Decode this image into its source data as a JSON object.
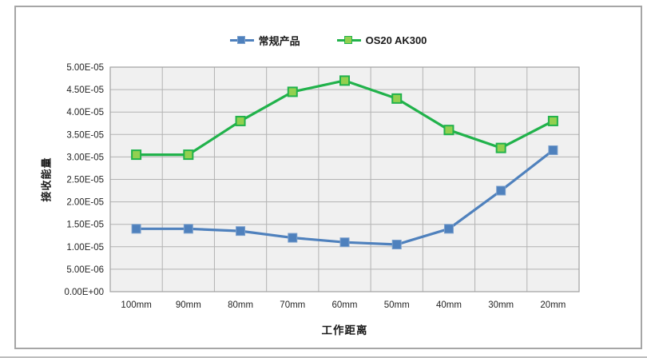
{
  "chart_data": {
    "type": "line",
    "categories": [
      "100mm",
      "90mm",
      "80mm",
      "70mm",
      "60mm",
      "50mm",
      "40mm",
      "30mm",
      "20mm"
    ],
    "series": [
      {
        "name": "常规产品",
        "color": "#4f81bd",
        "marker_fill": "#4f81bd",
        "marker_stroke": "#7ba0cd",
        "values": [
          1.4e-05,
          1.4e-05,
          1.35e-05,
          1.2e-05,
          1.1e-05,
          1.05e-05,
          1.4e-05,
          2.25e-05,
          3.15e-05
        ]
      },
      {
        "name": "OS20 AK300",
        "color": "#21b24b",
        "marker_fill": "#92d050",
        "marker_stroke": "#21b24b",
        "values": [
          3.05e-05,
          3.05e-05,
          3.8e-05,
          4.45e-05,
          4.7e-05,
          4.3e-05,
          3.6e-05,
          3.2e-05,
          3.8e-05
        ]
      }
    ],
    "title": "",
    "xlabel": "工作距离",
    "ylabel": "接收能量",
    "ylim": [
      0,
      5e-05
    ],
    "ytick_step": 5e-06,
    "ytick_labels": [
      "0.00E+00",
      "5.00E-06",
      "1.00E-05",
      "1.50E-05",
      "2.00E-05",
      "2.50E-05",
      "3.00E-05",
      "3.50E-05",
      "4.00E-05",
      "4.50E-05",
      "5.00E-05"
    ],
    "grid": true,
    "legend_position": "top-center"
  },
  "colors": {
    "plot_bg": "#f0f0f0",
    "grid": "#b3b3b3",
    "axis": "#a0a0a0",
    "frame_border": "#a6a6a6",
    "text": "#262626"
  }
}
